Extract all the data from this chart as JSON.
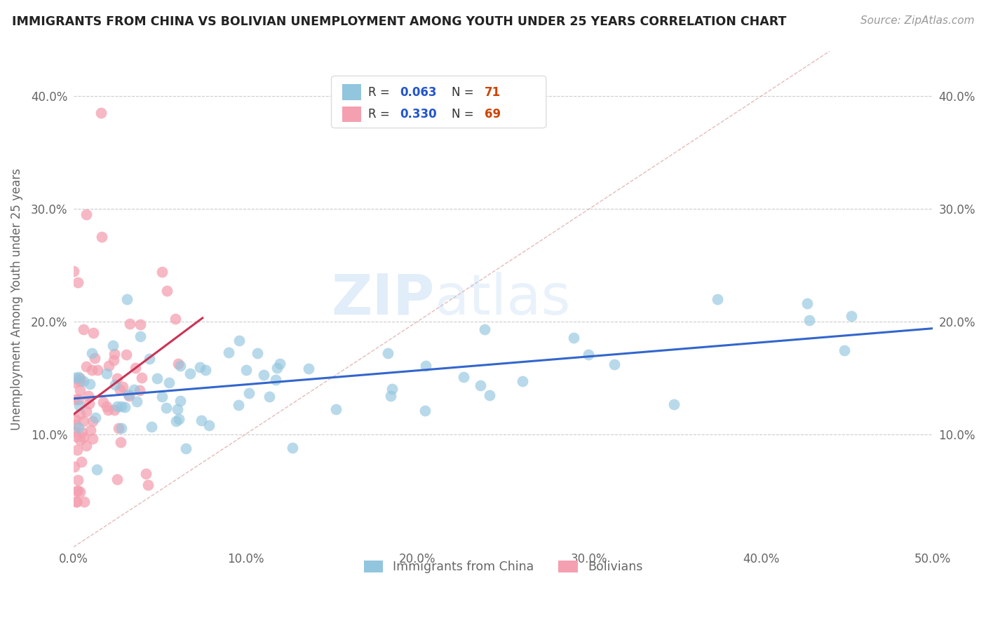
{
  "title": "IMMIGRANTS FROM CHINA VS BOLIVIAN UNEMPLOYMENT AMONG YOUTH UNDER 25 YEARS CORRELATION CHART",
  "source": "Source: ZipAtlas.com",
  "ylabel": "Unemployment Among Youth under 25 years",
  "xlim": [
    0.0,
    0.5
  ],
  "ylim": [
    0.0,
    0.44
  ],
  "xticks": [
    0.0,
    0.1,
    0.2,
    0.3,
    0.4,
    0.5
  ],
  "yticks": [
    0.1,
    0.2,
    0.3,
    0.4
  ],
  "xticklabels": [
    "0.0%",
    "10.0%",
    "20.0%",
    "30.0%",
    "40.0%",
    "50.0%"
  ],
  "yticklabels": [
    "10.0%",
    "20.0%",
    "30.0%",
    "40.0%"
  ],
  "series1_color": "#92c5de",
  "series2_color": "#f4a0b0",
  "series1_R": 0.063,
  "series1_N": 71,
  "series2_R": 0.33,
  "series2_N": 69,
  "watermark_zip": "ZIP",
  "watermark_atlas": "atlas",
  "background_color": "#ffffff",
  "grid_color": "#cccccc",
  "title_color": "#222222",
  "axis_color": "#666666",
  "legend_R_color": "#2255cc",
  "legend_N_color": "#cc4400",
  "line1_color": "#3366cc",
  "line2_color": "#cc3355",
  "diag_color": "#ddaaaa"
}
